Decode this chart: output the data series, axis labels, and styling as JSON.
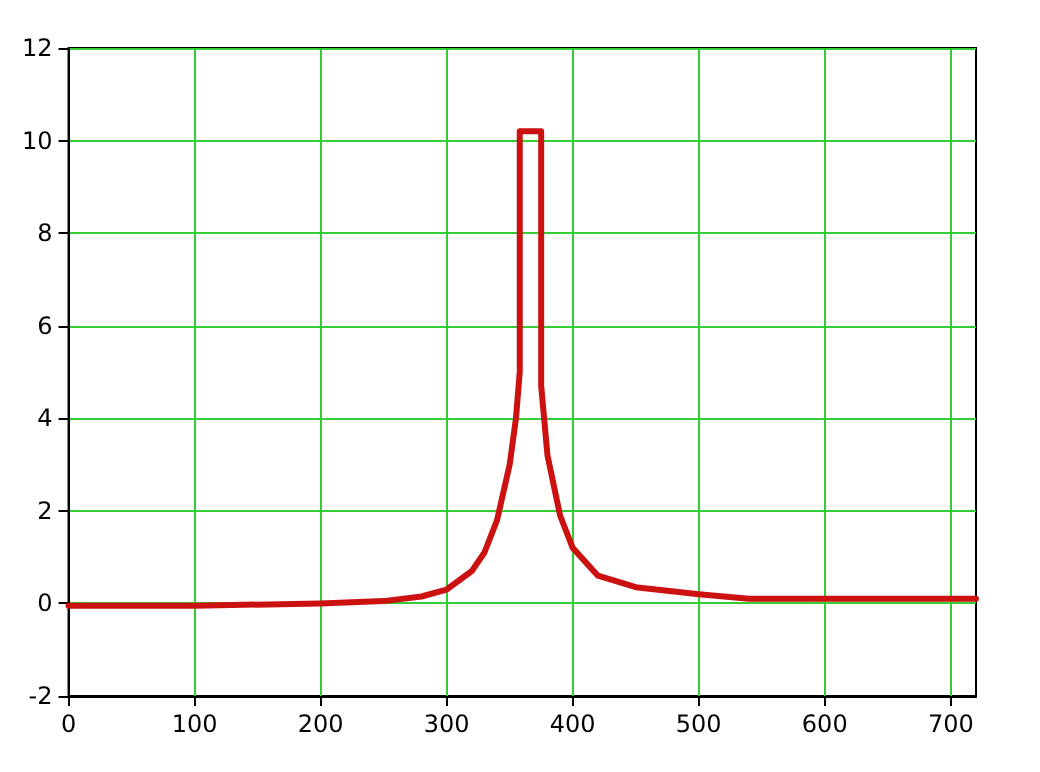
{
  "chart_data": {
    "type": "line",
    "x": [
      0,
      100,
      200,
      250,
      280,
      300,
      320,
      330,
      340,
      350,
      355,
      358,
      358,
      375,
      375,
      380,
      390,
      400,
      420,
      450,
      500,
      540,
      600,
      720
    ],
    "series": [
      {
        "color": "#cc1111",
        "values": [
          -0.05,
          -0.05,
          0,
          0.05,
          0.15,
          0.3,
          0.7,
          1.1,
          1.8,
          3,
          4,
          5,
          10.2,
          10.2,
          4.7,
          3.2,
          1.9,
          1.2,
          0.6,
          0.35,
          0.2,
          0.1,
          0.1,
          0.1
        ]
      }
    ],
    "xlim": [
      0,
      720
    ],
    "xticks": [
      0,
      100,
      200,
      300,
      400,
      500,
      600,
      700
    ],
    "ylim": [
      -2,
      12
    ],
    "yticks": [
      -2,
      0,
      2,
      4,
      6,
      8,
      10,
      12
    ],
    "grid": true,
    "marker": "none",
    "line_style": "solid"
  }
}
